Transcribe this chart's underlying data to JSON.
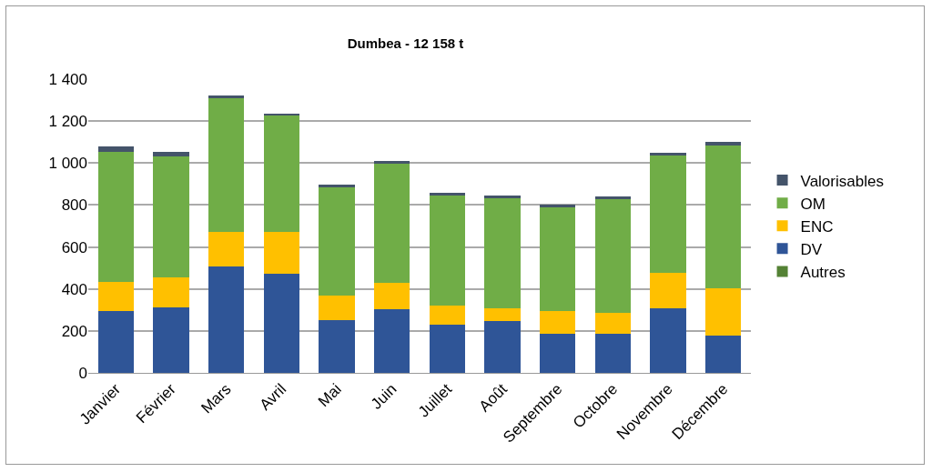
{
  "chart_data": {
    "type": "bar",
    "title": "Dumbea - 12 158 t",
    "stacked": true,
    "legend": "right",
    "grid": "y",
    "categories": [
      "Janvier",
      "Février",
      "Mars",
      "Avril",
      "Mai",
      "Juin",
      "Juillet",
      "Août",
      "Septembre",
      "Octobre",
      "Novembre",
      "Décembre"
    ],
    "ylim": [
      0,
      1400
    ],
    "yticks": [
      0,
      {
        "value": 200,
        "label": "200"
      },
      {
        "value": 400,
        "label": "400"
      },
      {
        "value": 600,
        "label": "600"
      },
      {
        "value": 800,
        "label": "800"
      },
      {
        "value": 1000,
        "label": "1 000"
      },
      {
        "value": 1200,
        "label": "1 200"
      },
      {
        "value": 1400,
        "label": "1 400"
      }
    ],
    "series": [
      {
        "name": "Autres",
        "color": "#548235",
        "values": [
          0,
          0,
          0,
          0,
          0,
          0,
          0,
          0,
          0,
          0,
          0,
          0
        ]
      },
      {
        "name": "DV",
        "color": "#2f5597",
        "values": [
          295,
          314,
          506,
          472,
          251,
          304,
          229,
          246,
          187,
          185,
          306,
          176
        ]
      },
      {
        "name": "ENC",
        "color": "#ffc000",
        "values": [
          140,
          141,
          164,
          198,
          119,
          123,
          90,
          61,
          108,
          103,
          171,
          225
        ]
      },
      {
        "name": "OM",
        "color": "#70ad47",
        "values": [
          620,
          575,
          638,
          560,
          513,
          571,
          525,
          525,
          495,
          539,
          558,
          684
        ]
      },
      {
        "name": "Valorisables",
        "color": "#44546a",
        "values": [
          24,
          22,
          12,
          7,
          16,
          13,
          14,
          14,
          11,
          13,
          16,
          15
        ]
      }
    ]
  }
}
